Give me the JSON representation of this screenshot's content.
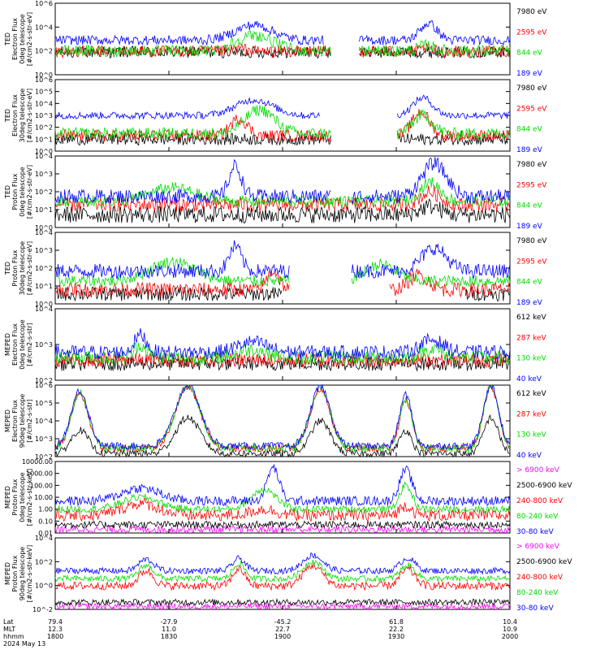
{
  "colors": {
    "black": "#000000",
    "red": "#ff0000",
    "green": "#00dd00",
    "blue": "#0000ff",
    "magenta": "#ff00ff"
  },
  "footer": {
    "row_labels": [
      "Lat",
      "MLT",
      "hhmm",
      "2024 May 13"
    ],
    "ticks": [
      {
        "t": 0,
        "lat": "79.4",
        "mlt": "12.3",
        "hhmm": "1800"
      },
      {
        "t": 30,
        "lat": "-27.9",
        "mlt": "11.0",
        "hhmm": "1830"
      },
      {
        "t": 60,
        "lat": "-45.2",
        "mlt": "22.7",
        "hhmm": "1900"
      },
      {
        "t": 90,
        "lat": "61.8",
        "mlt": "22.2",
        "hhmm": "1930"
      },
      {
        "t": 120,
        "lat": "10.4",
        "mlt": "10.9",
        "hhmm": "2000"
      }
    ]
  },
  "chart_data": [
    {
      "type": "line",
      "panel": "ted-electron-0deg",
      "ylabel": [
        "TED",
        "Electron Flux",
        "0deg telescope",
        "[#/cm2-s-str-eV]"
      ],
      "yscale": "log",
      "ylim": [
        1,
        1000000
      ],
      "ytick_labels": [
        "10^0",
        "10^2",
        "10^4",
        "10^6"
      ],
      "x_range_min": [
        0,
        120
      ],
      "series": [
        {
          "name": "7980 eV",
          "color": "#000000",
          "level": 80,
          "noise": 0.5,
          "events": [
            [
              45,
              52,
              60
            ]
          ],
          "gaps": [
            [
              73,
              80
            ],
            [
              104,
              105
            ]
          ]
        },
        {
          "name": "2595 eV",
          "color": "#ff0000",
          "level": 90,
          "noise": 0.5,
          "events": [
            [
              45,
              52,
              150
            ],
            [
              96,
              100,
              150
            ]
          ],
          "gaps": [
            [
              73,
              80
            ]
          ]
        },
        {
          "name": "844 eV",
          "color": "#00dd00",
          "level": 100,
          "noise": 0.5,
          "events": [
            [
              45,
              60,
              2000
            ],
            [
              95,
              101,
              300
            ]
          ],
          "gaps": [
            [
              73,
              80
            ]
          ]
        },
        {
          "name": "189 eV",
          "color": "#0000ff",
          "level": 800,
          "noise": 0.4,
          "events": [
            [
              45,
              60,
              15000
            ],
            [
              95,
              102,
              20000
            ]
          ],
          "gaps": [
            [
              71,
              80
            ]
          ]
        }
      ]
    },
    {
      "type": "line",
      "panel": "ted-electron-30deg",
      "ylabel": [
        "TED",
        "Electron Flux",
        "30deg telescope",
        "[#/cm2-s-str-eV]"
      ],
      "yscale": "log",
      "ylim": [
        1,
        1000000
      ],
      "ytick_labels": [
        "10^0",
        "10^1",
        "10^2",
        "10^3",
        "10^4",
        "10^5",
        "10^6"
      ],
      "series": [
        {
          "name": "7980 eV",
          "color": "#000000",
          "level": 10,
          "noise": 0.5,
          "events": [],
          "gaps": [
            [
              73,
              90
            ]
          ]
        },
        {
          "name": "2595 eV",
          "color": "#ff0000",
          "level": 20,
          "noise": 0.5,
          "events": [
            [
              45,
              52,
              500
            ],
            [
              93,
              100,
              2000
            ]
          ],
          "gaps": [
            [
              73,
              90
            ]
          ]
        },
        {
          "name": "844 eV",
          "color": "#00dd00",
          "level": 30,
          "noise": 0.5,
          "events": [
            [
              48,
              60,
              3000
            ],
            [
              93,
              101,
              1000
            ]
          ],
          "gaps": [
            [
              73,
              90
            ]
          ]
        },
        {
          "name": "189 eV",
          "color": "#0000ff",
          "level": 1000,
          "noise": 0.3,
          "events": [
            [
              45,
              60,
              20000
            ],
            [
              93,
              101,
              30000
            ]
          ],
          "gaps": [
            [
              70,
              90
            ]
          ]
        }
      ]
    },
    {
      "type": "line",
      "panel": "ted-proton-0deg",
      "ylabel": [
        "TED",
        "Proton Flux",
        "0deg telescope",
        "[#/cm2-s-str-eV]"
      ],
      "yscale": "log",
      "ylim": [
        1,
        100000
      ],
      "ytick_labels": [
        "10^0",
        "10^1",
        "10^2",
        "10^3",
        "10^4"
      ],
      "series": [
        {
          "name": "7980 eV",
          "color": "#000000",
          "level": 8,
          "noise": 0.6,
          "events": [
            [
              95,
              103,
              30
            ]
          ],
          "gaps": []
        },
        {
          "name": "2595 eV",
          "color": "#ff0000",
          "level": 40,
          "noise": 0.5,
          "events": [
            [
              95,
              103,
              300
            ]
          ],
          "gaps": []
        },
        {
          "name": "844 eV",
          "color": "#00dd00",
          "level": 70,
          "noise": 0.4,
          "events": [
            [
              22,
              40,
              600
            ],
            [
              95,
              103,
              1500
            ]
          ],
          "gaps": []
        },
        {
          "name": "189 eV",
          "color": "#0000ff",
          "level": 150,
          "noise": 0.5,
          "events": [
            [
              45,
              50,
              20000
            ],
            [
              95,
              105,
              30000
            ]
          ],
          "gaps": [
            [
              73,
              78
            ]
          ]
        }
      ]
    },
    {
      "type": "line",
      "panel": "ted-proton-30deg",
      "ylabel": [
        "TED",
        "Proton Flux",
        "30deg telescope",
        "[#/cm2-s-str-eV]"
      ],
      "yscale": "log",
      "ylim": [
        1,
        100000
      ],
      "ytick_labels": [
        "10^0",
        "10^1",
        "10^2",
        "10^3",
        "10^4"
      ],
      "series": [
        {
          "name": "7980 eV",
          "color": "#000000",
          "level": 5,
          "noise": 0.5,
          "events": [],
          "gaps": [
            [
              60,
              108
            ]
          ]
        },
        {
          "name": "2595 eV",
          "color": "#ff0000",
          "level": 10,
          "noise": 0.5,
          "events": [
            [
              55,
              60,
              200
            ],
            [
              92,
              100,
              100
            ]
          ],
          "gaps": [
            [
              62,
              88
            ]
          ]
        },
        {
          "name": "844 eV",
          "color": "#00dd00",
          "level": 40,
          "noise": 0.4,
          "events": [
            [
              22,
              40,
              900
            ],
            [
              80,
              92,
              600
            ]
          ],
          "gaps": [
            [
              62,
              78
            ]
          ]
        },
        {
          "name": "189 eV",
          "color": "#0000ff",
          "level": 200,
          "noise": 0.5,
          "events": [
            [
              45,
              50,
              10000
            ],
            [
              95,
              105,
              8000
            ]
          ],
          "gaps": [
            [
              62,
              78
            ]
          ]
        }
      ]
    },
    {
      "type": "line",
      "panel": "meped-electron-0deg",
      "ylabel": [
        "MEPED",
        "Electron Flux",
        "0deg telescope",
        "[#/cm2-s-str]"
      ],
      "yscale": "log",
      "ylim": [
        100,
        100000
      ],
      "ytick_labels": [
        "10^2",
        "10^3",
        "10^4"
      ],
      "series": [
        {
          "name": "612 keV",
          "color": "#000000",
          "level": 500,
          "noise": 0.3,
          "events": [],
          "gaps": []
        },
        {
          "name": "287 keV",
          "color": "#ff0000",
          "level": 700,
          "noise": 0.3,
          "events": [],
          "gaps": []
        },
        {
          "name": "130 keV",
          "color": "#00dd00",
          "level": 900,
          "noise": 0.3,
          "events": [
            [
              20,
              25,
              3000
            ],
            [
              46,
              58,
              2000
            ],
            [
              95,
              104,
              2000
            ]
          ],
          "gaps": []
        },
        {
          "name": "40 keV",
          "color": "#0000ff",
          "level": 1500,
          "noise": 0.3,
          "events": [
            [
              20,
              25,
              8000
            ],
            [
              46,
              58,
              4000
            ],
            [
              95,
              104,
              5000
            ]
          ],
          "gaps": []
        }
      ]
    },
    {
      "type": "line",
      "panel": "meped-electron-90deg",
      "ylabel": [
        "MEPED",
        "Electron Flux",
        "90deg telescope",
        "[#/cm2-s-str]"
      ],
      "yscale": "log",
      "ylim": [
        100,
        1000000
      ],
      "ytick_labels": [
        "10^2",
        "10^3",
        "10^4",
        "10^5",
        "10^6"
      ],
      "series": [
        {
          "name": "612 keV",
          "color": "#000000",
          "level": 150,
          "noise": 0.2,
          "events": [
            [
              3,
              10,
              3000
            ],
            [
              30,
              40,
              15000
            ],
            [
              66,
              74,
              10000
            ],
            [
              90,
              95,
              3000
            ],
            [
              112,
              118,
              15000
            ]
          ],
          "gaps": []
        },
        {
          "name": "287 keV",
          "color": "#ff0000",
          "level": 300,
          "noise": 0.2,
          "events": [
            [
              3,
              10,
              300000
            ],
            [
              30,
              40,
              800000
            ],
            [
              66,
              74,
              600000
            ],
            [
              90,
              95,
              150000
            ],
            [
              112,
              118,
              800000
            ]
          ],
          "gaps": []
        },
        {
          "name": "130 keV",
          "color": "#00dd00",
          "level": 300,
          "noise": 0.2,
          "events": [
            [
              3,
              10,
              400000
            ],
            [
              30,
              40,
              900000
            ],
            [
              66,
              74,
              700000
            ],
            [
              90,
              95,
              200000
            ],
            [
              112,
              118,
              900000
            ]
          ],
          "gaps": []
        },
        {
          "name": "40 keV",
          "color": "#0000ff",
          "level": 400,
          "noise": 0.2,
          "events": [
            [
              3,
              10,
              500000
            ],
            [
              30,
              40,
              1000000
            ],
            [
              66,
              74,
              800000
            ],
            [
              90,
              95,
              300000
            ],
            [
              112,
              118,
              1000000
            ]
          ],
          "gaps": []
        }
      ]
    },
    {
      "type": "line",
      "panel": "meped-proton-0deg",
      "ylabel": [
        "MEPED",
        "Proton Flux",
        "0deg telescope",
        "[#/cm2-s-str-keV]"
      ],
      "yscale": "log",
      "ylim": [
        0.01,
        10000
      ],
      "ytick_labels": [
        "0.01",
        "0.10",
        "1.00",
        "10.00",
        "100.00",
        "1000.00",
        "10000.00"
      ],
      "series": [
        {
          "name": "> 6900 keV",
          "color": "#ff00ff",
          "level": 0.02,
          "noise": 0.3,
          "events": [],
          "gaps": []
        },
        {
          "name": "2500-6900 keV",
          "color": "#000000",
          "level": 0.05,
          "noise": 0.3,
          "events": [],
          "gaps": []
        },
        {
          "name": "240-800 keV",
          "color": "#ff0000",
          "level": 0.3,
          "noise": 0.5,
          "events": [
            [
              15,
              30,
              3
            ],
            [
              50,
              60,
              1
            ],
            [
              90,
              95,
              2
            ]
          ],
          "gaps": []
        },
        {
          "name": "80-240 keV",
          "color": "#00dd00",
          "level": 1,
          "noise": 0.3,
          "events": [
            [
              15,
              30,
              10
            ],
            [
              50,
              60,
              50
            ],
            [
              90,
              95,
              100
            ]
          ],
          "gaps": []
        },
        {
          "name": "30-80 keV",
          "color": "#0000ff",
          "level": 5,
          "noise": 0.4,
          "events": [
            [
              15,
              30,
              60
            ],
            [
              55,
              60,
              3000
            ],
            [
              90,
              95,
              2000
            ]
          ],
          "gaps": []
        }
      ]
    },
    {
      "type": "line",
      "panel": "meped-proton-90deg",
      "ylabel": [
        "MEPED",
        "Proton Flux",
        "90deg telescope",
        "[#/cm2-s-str-keV]"
      ],
      "yscale": "log",
      "ylim": [
        0.01,
        100000
      ],
      "ytick_labels": [
        "10^-2",
        "10^0",
        "10^2",
        "10^4"
      ],
      "series": [
        {
          "name": "> 6900 keV",
          "color": "#ff00ff",
          "level": 0.02,
          "noise": 0.3,
          "events": [],
          "gaps": []
        },
        {
          "name": "2500-6900 keV",
          "color": "#000000",
          "level": 0.05,
          "noise": 0.3,
          "events": [],
          "gaps": []
        },
        {
          "name": "240-800 keV",
          "color": "#ff0000",
          "level": 2,
          "noise": 0.4,
          "events": [
            [
              21,
              27,
              60
            ],
            [
              46,
              51,
              100
            ],
            [
              64,
              72,
              200
            ],
            [
              90,
              96,
              80
            ]
          ],
          "gaps": []
        },
        {
          "name": "80-240 keV",
          "color": "#00dd00",
          "level": 10,
          "noise": 0.3,
          "events": [
            [
              21,
              27,
              200
            ],
            [
              46,
              51,
              300
            ],
            [
              64,
              72,
              500
            ],
            [
              90,
              96,
              200
            ]
          ],
          "gaps": []
        },
        {
          "name": "30-80 keV",
          "color": "#0000ff",
          "level": 60,
          "noise": 0.3,
          "events": [
            [
              21,
              27,
              800
            ],
            [
              46,
              51,
              1000
            ],
            [
              64,
              72,
              2000
            ],
            [
              90,
              96,
              1000
            ]
          ],
          "gaps": []
        }
      ]
    }
  ]
}
